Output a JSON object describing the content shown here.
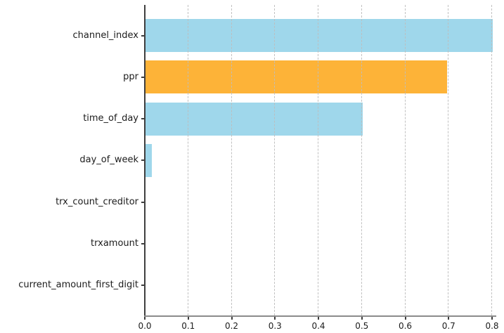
{
  "chart_data": {
    "type": "bar",
    "orientation": "horizontal",
    "title": "",
    "xlabel": "",
    "ylabel": "",
    "categories": [
      "channel_index",
      "ppr",
      "time_of_day",
      "day_of_week",
      "trx_count_creditor",
      "trxamount",
      "current_amount_first_digit"
    ],
    "values": [
      0.8,
      0.695,
      0.5,
      0.015,
      0.0,
      0.0,
      0.0
    ],
    "bar_colors": [
      "#9FD7EB",
      "#FDB338",
      "#9FD7EB",
      "#9FD7EB",
      "#9FD7EB",
      "#9FD7EB",
      "#9FD7EB"
    ],
    "x_ticks": [
      0.0,
      0.1,
      0.2,
      0.3,
      0.4,
      0.5,
      0.6,
      0.7,
      0.8
    ],
    "x_tick_labels": [
      "0.0",
      "0.1",
      "0.2",
      "0.3",
      "0.4",
      "0.5",
      "0.6",
      "0.7",
      "0.8"
    ],
    "xlim": [
      0,
      0.81
    ],
    "grid": {
      "axis": "x",
      "style": "dashed",
      "color": "#c0c0c0",
      "above_bars": true
    },
    "legend": null
  },
  "colors": {
    "bar_default": "#9FD7EB",
    "bar_highlight": "#FDB338",
    "grid": "#c0c0c0",
    "spine_left": "#3f3f3f",
    "spine_bottom": "#8c8c8c",
    "tick": "#3f3f3f",
    "text": "#1c1c1c",
    "background": "#ffffff"
  }
}
